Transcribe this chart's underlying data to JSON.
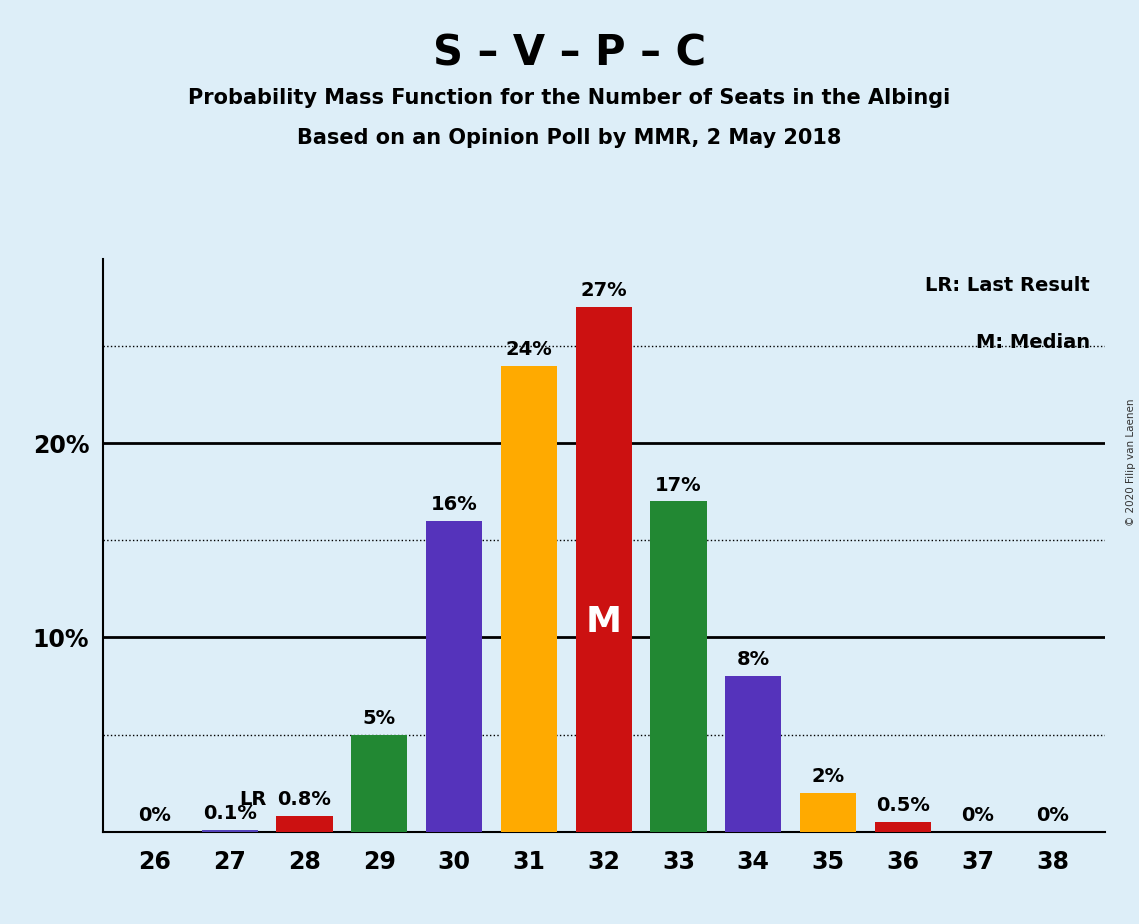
{
  "title": "S – V – P – C",
  "subtitle1": "Probability Mass Function for the Number of Seats in the Albingi",
  "subtitle2": "Based on an Opinion Poll by MMR, 2 May 2018",
  "copyright": "© 2020 Filip van Laenen",
  "seats": [
    26,
    27,
    28,
    29,
    30,
    31,
    32,
    33,
    34,
    35,
    36,
    37,
    38
  ],
  "values": [
    0.0,
    0.1,
    0.8,
    5.0,
    16.0,
    24.0,
    27.0,
    17.0,
    8.0,
    2.0,
    0.5,
    0.0,
    0.0
  ],
  "labels": [
    "0%",
    "0.1%",
    "0.8%",
    "5%",
    "16%",
    "24%",
    "27%",
    "17%",
    "8%",
    "2%",
    "0.5%",
    "0%",
    "0%"
  ],
  "bar_colors": [
    "#5544bb",
    "#5544bb",
    "#cc1111",
    "#228833",
    "#5533bb",
    "#ffaa00",
    "#cc1111",
    "#228833",
    "#5533bb",
    "#ffaa00",
    "#cc1111",
    "#5544bb",
    "#5544bb"
  ],
  "background_color": "#ddeef8",
  "plot_bg_color": "#ddeef8",
  "ylim_max": 29.5,
  "legend_lr_text": "LR: Last Result",
  "legend_m_text": "M: Median",
  "lr_seat": 28,
  "median_seat": 32,
  "dotted_gridlines": [
    5,
    15,
    25
  ],
  "solid_gridlines": [
    10,
    20
  ],
  "ytick_positions": [
    10,
    20
  ],
  "ytick_labels": [
    "10%",
    "20%"
  ],
  "bar_width": 0.75,
  "label_fontsize": 14,
  "tick_fontsize": 17,
  "title_fontsize": 30,
  "subtitle_fontsize": 15,
  "legend_fontsize": 14,
  "m_fontsize": 26
}
